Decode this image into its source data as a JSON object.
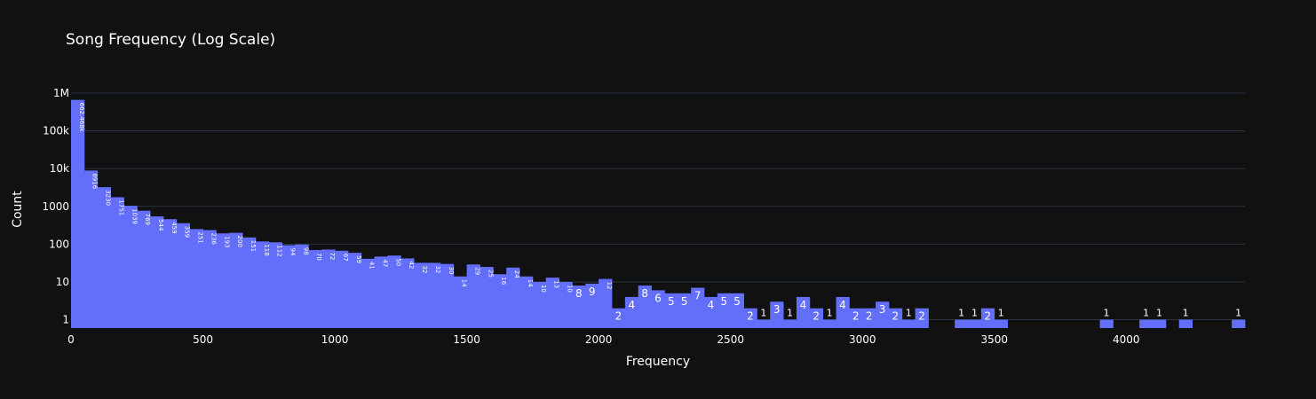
{
  "chart_data": {
    "type": "bar",
    "title": "Song Frequency (Log Scale)",
    "xlabel": "Frequency",
    "ylabel": "Count",
    "y_scale": "log",
    "x_range": [
      0,
      4450
    ],
    "y_range": [
      0.6,
      1000000
    ],
    "bin_width": 50,
    "bar_color": "#636efa",
    "background": "#111111",
    "grid_color": "#283442",
    "grid": true,
    "x_ticks": [
      {
        "value": 0,
        "label": "0"
      },
      {
        "value": 500,
        "label": "500"
      },
      {
        "value": 1000,
        "label": "1000"
      },
      {
        "value": 1500,
        "label": "1500"
      },
      {
        "value": 2000,
        "label": "2000"
      },
      {
        "value": 2500,
        "label": "2500"
      },
      {
        "value": 3000,
        "label": "3000"
      },
      {
        "value": 3500,
        "label": "3500"
      },
      {
        "value": 4000,
        "label": "4000"
      }
    ],
    "y_ticks": [
      {
        "value": 1,
        "label": "1"
      },
      {
        "value": 10,
        "label": "10"
      },
      {
        "value": 100,
        "label": "100"
      },
      {
        "value": 1000,
        "label": "1000"
      },
      {
        "value": 10000,
        "label": "10k"
      },
      {
        "value": 100000,
        "label": "100k"
      },
      {
        "value": 1000000,
        "label": "1M"
      }
    ],
    "bins": [
      {
        "x0": 0,
        "x1": 50,
        "value": 662468,
        "label": "662.468k"
      },
      {
        "x0": 50,
        "x1": 100,
        "value": 8916,
        "label": "8916"
      },
      {
        "x0": 100,
        "x1": 150,
        "value": 3230,
        "label": "3230"
      },
      {
        "x0": 150,
        "x1": 200,
        "value": 1751,
        "label": "1751"
      },
      {
        "x0": 200,
        "x1": 250,
        "value": 1039,
        "label": "1039"
      },
      {
        "x0": 250,
        "x1": 300,
        "value": 769,
        "label": "769"
      },
      {
        "x0": 300,
        "x1": 350,
        "value": 544,
        "label": "544"
      },
      {
        "x0": 350,
        "x1": 400,
        "value": 459,
        "label": "459"
      },
      {
        "x0": 400,
        "x1": 450,
        "value": 359,
        "label": "359"
      },
      {
        "x0": 450,
        "x1": 500,
        "value": 251,
        "label": "251"
      },
      {
        "x0": 500,
        "x1": 550,
        "value": 236,
        "label": "236"
      },
      {
        "x0": 550,
        "x1": 600,
        "value": 193,
        "label": "193"
      },
      {
        "x0": 600,
        "x1": 650,
        "value": 200,
        "label": "200"
      },
      {
        "x0": 650,
        "x1": 700,
        "value": 151,
        "label": "151"
      },
      {
        "x0": 700,
        "x1": 750,
        "value": 118,
        "label": "118"
      },
      {
        "x0": 750,
        "x1": 800,
        "value": 112,
        "label": "112"
      },
      {
        "x0": 800,
        "x1": 850,
        "value": 94,
        "label": "94"
      },
      {
        "x0": 850,
        "x1": 900,
        "value": 98,
        "label": "98"
      },
      {
        "x0": 900,
        "x1": 950,
        "value": 70,
        "label": "70"
      },
      {
        "x0": 950,
        "x1": 1000,
        "value": 72,
        "label": "72"
      },
      {
        "x0": 1000,
        "x1": 1050,
        "value": 67,
        "label": "67"
      },
      {
        "x0": 1050,
        "x1": 1100,
        "value": 59,
        "label": "59"
      },
      {
        "x0": 1100,
        "x1": 1150,
        "value": 41,
        "label": "41"
      },
      {
        "x0": 1150,
        "x1": 1200,
        "value": 47,
        "label": "47"
      },
      {
        "x0": 1200,
        "x1": 1250,
        "value": 50,
        "label": "50"
      },
      {
        "x0": 1250,
        "x1": 1300,
        "value": 42,
        "label": "42"
      },
      {
        "x0": 1300,
        "x1": 1350,
        "value": 32,
        "label": "32"
      },
      {
        "x0": 1350,
        "x1": 1400,
        "value": 32,
        "label": "32"
      },
      {
        "x0": 1400,
        "x1": 1450,
        "value": 30,
        "label": "30"
      },
      {
        "x0": 1450,
        "x1": 1500,
        "value": 14,
        "label": "14"
      },
      {
        "x0": 1500,
        "x1": 1550,
        "value": 29,
        "label": "29"
      },
      {
        "x0": 1550,
        "x1": 1600,
        "value": 25,
        "label": "25"
      },
      {
        "x0": 1600,
        "x1": 1650,
        "value": 16,
        "label": "16"
      },
      {
        "x0": 1650,
        "x1": 1700,
        "value": 24,
        "label": "24"
      },
      {
        "x0": 1700,
        "x1": 1750,
        "value": 14,
        "label": "14"
      },
      {
        "x0": 1750,
        "x1": 1800,
        "value": 10,
        "label": "10"
      },
      {
        "x0": 1800,
        "x1": 1850,
        "value": 13,
        "label": "13"
      },
      {
        "x0": 1850,
        "x1": 1900,
        "value": 10,
        "label": "10"
      },
      {
        "x0": 1900,
        "x1": 1950,
        "value": 8,
        "label": "8"
      },
      {
        "x0": 1950,
        "x1": 2000,
        "value": 9,
        "label": "9"
      },
      {
        "x0": 2000,
        "x1": 2050,
        "value": 12,
        "label": "12"
      },
      {
        "x0": 2050,
        "x1": 2100,
        "value": 2,
        "label": "2"
      },
      {
        "x0": 2100,
        "x1": 2150,
        "value": 4,
        "label": "4"
      },
      {
        "x0": 2150,
        "x1": 2200,
        "value": 8,
        "label": "8"
      },
      {
        "x0": 2200,
        "x1": 2250,
        "value": 6,
        "label": "6"
      },
      {
        "x0": 2250,
        "x1": 2300,
        "value": 5,
        "label": "5"
      },
      {
        "x0": 2300,
        "x1": 2350,
        "value": 5,
        "label": "5"
      },
      {
        "x0": 2350,
        "x1": 2400,
        "value": 7,
        "label": "7"
      },
      {
        "x0": 2400,
        "x1": 2450,
        "value": 4,
        "label": "4"
      },
      {
        "x0": 2450,
        "x1": 2500,
        "value": 5,
        "label": "5"
      },
      {
        "x0": 2500,
        "x1": 2550,
        "value": 5,
        "label": "5"
      },
      {
        "x0": 2550,
        "x1": 2600,
        "value": 2,
        "label": "2"
      },
      {
        "x0": 2600,
        "x1": 2650,
        "value": 1,
        "label": "1"
      },
      {
        "x0": 2650,
        "x1": 2700,
        "value": 3,
        "label": "3"
      },
      {
        "x0": 2700,
        "x1": 2750,
        "value": 1,
        "label": "1"
      },
      {
        "x0": 2750,
        "x1": 2800,
        "value": 4,
        "label": "4"
      },
      {
        "x0": 2800,
        "x1": 2850,
        "value": 2,
        "label": "2"
      },
      {
        "x0": 2850,
        "x1": 2900,
        "value": 1,
        "label": "1"
      },
      {
        "x0": 2900,
        "x1": 2950,
        "value": 4,
        "label": "4"
      },
      {
        "x0": 2950,
        "x1": 3000,
        "value": 2,
        "label": "2"
      },
      {
        "x0": 3000,
        "x1": 3050,
        "value": 2,
        "label": "2"
      },
      {
        "x0": 3050,
        "x1": 3100,
        "value": 3,
        "label": "3"
      },
      {
        "x0": 3100,
        "x1": 3150,
        "value": 2,
        "label": "2"
      },
      {
        "x0": 3150,
        "x1": 3200,
        "value": 1,
        "label": "1"
      },
      {
        "x0": 3200,
        "x1": 3250,
        "value": 2,
        "label": "2"
      },
      {
        "x0": 3350,
        "x1": 3400,
        "value": 1,
        "label": "1"
      },
      {
        "x0": 3400,
        "x1": 3450,
        "value": 1,
        "label": "1"
      },
      {
        "x0": 3450,
        "x1": 3500,
        "value": 2,
        "label": "2"
      },
      {
        "x0": 3500,
        "x1": 3550,
        "value": 1,
        "label": "1"
      },
      {
        "x0": 3900,
        "x1": 3950,
        "value": 1,
        "label": "1"
      },
      {
        "x0": 4050,
        "x1": 4100,
        "value": 1,
        "label": "1"
      },
      {
        "x0": 4100,
        "x1": 4150,
        "value": 1,
        "label": "1"
      },
      {
        "x0": 4200,
        "x1": 4250,
        "value": 1,
        "label": "1"
      },
      {
        "x0": 4400,
        "x1": 4450,
        "value": 1,
        "label": "1"
      }
    ]
  }
}
